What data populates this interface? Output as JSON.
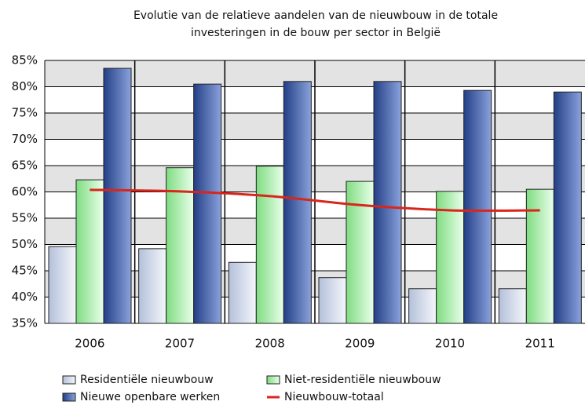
{
  "chart_data": {
    "type": "bar",
    "title": [
      "Evolutie van de relatieve aandelen van de nieuwbouw in de totale",
      "investeringen in de bouw per sector in België"
    ],
    "categories": [
      "2006",
      "2007",
      "2008",
      "2009",
      "2010",
      "2011"
    ],
    "series": [
      {
        "name": "Residentiële nieuwbouw",
        "type": "bar",
        "color": "#c5cfe4",
        "values": [
          49.6,
          49.2,
          46.6,
          43.7,
          41.6,
          41.6
        ]
      },
      {
        "name": "Niet-residentiële nieuwbouw",
        "type": "bar",
        "color": "#9fe6a0",
        "values": [
          62.3,
          64.6,
          64.9,
          62.0,
          60.1,
          60.5
        ]
      },
      {
        "name": "Nieuwe openbare werken",
        "type": "bar",
        "color": "#3f5ea8",
        "values": [
          83.5,
          80.5,
          81.0,
          81.0,
          79.3,
          79.0
        ]
      },
      {
        "name": "Nieuwbouw-totaal",
        "type": "line",
        "color": "#d9261c",
        "values": [
          60.4,
          60.1,
          59.2,
          57.5,
          56.5,
          56.5
        ]
      }
    ],
    "ylim": [
      35,
      85
    ],
    "yticks": [
      {
        "value": 35,
        "label": "35%"
      },
      {
        "value": 40,
        "label": "40%"
      },
      {
        "value": 45,
        "label": "45%"
      },
      {
        "value": 50,
        "label": "50%"
      },
      {
        "value": 55,
        "label": "55%"
      },
      {
        "value": 60,
        "label": "60%"
      },
      {
        "value": 65,
        "label": "65%"
      },
      {
        "value": 70,
        "label": "70%"
      },
      {
        "value": 75,
        "label": "75%"
      },
      {
        "value": 80,
        "label": "80%"
      },
      {
        "value": 85,
        "label": "85%"
      }
    ],
    "grid": true,
    "legend": "bottom"
  }
}
